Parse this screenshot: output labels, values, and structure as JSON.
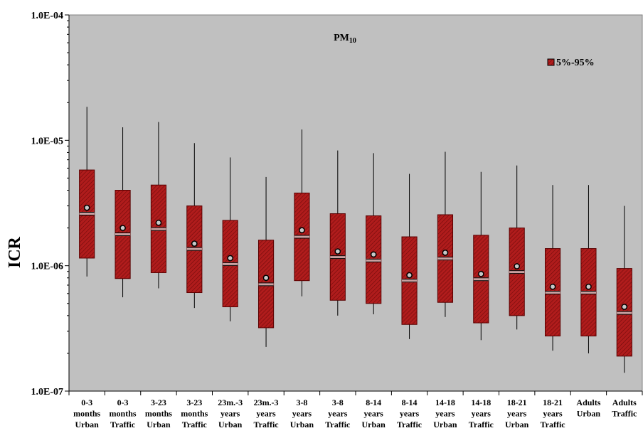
{
  "chart_data": {
    "type": "box",
    "title_main": "PM",
    "title_sub": "10",
    "ylabel": "ICR",
    "xlabel": "",
    "yscale": "log",
    "ylim": [
      1e-07,
      0.0001
    ],
    "y_ticks": [
      1e-07,
      1e-06,
      1e-05,
      0.0001
    ],
    "y_tick_labels": [
      "1.0E-07",
      "1.0E-06",
      "1.0E-05",
      "1.0E-04"
    ],
    "grid": false,
    "legend": {
      "label": "5%-95%",
      "position": "top-right"
    },
    "colors": {
      "plot_background": "#c0c0c0",
      "box_fill": "#b01c1c",
      "box_stroke": "#5a0000",
      "mean_marker": "#c8c8c8"
    },
    "categories": [
      [
        "0-3",
        "months",
        "Urban"
      ],
      [
        "0-3",
        "months",
        "Traffic"
      ],
      [
        "3-23",
        "months",
        "Urban"
      ],
      [
        "3-23",
        "months",
        "Traffic"
      ],
      [
        "23m.-3",
        "years",
        "Urban"
      ],
      [
        "23m.-3",
        "years",
        "Traffic"
      ],
      [
        "3-8",
        "years",
        "Urban"
      ],
      [
        "3-8",
        "years",
        "Traffic"
      ],
      [
        "8-14",
        "years",
        "Urban"
      ],
      [
        "8-14",
        "years",
        "Traffic"
      ],
      [
        "14-18",
        "years",
        "Urban"
      ],
      [
        "14-18",
        "years",
        "Traffic"
      ],
      [
        "18-21",
        "years",
        "Urban"
      ],
      [
        "18-21",
        "years",
        "Traffic"
      ],
      [
        "Adults",
        "Urban"
      ],
      [
        "Adults",
        "Traffic"
      ]
    ],
    "series": [
      {
        "name": "5%-95%",
        "boxes": [
          {
            "min": 8.2e-07,
            "q_low": 1.15e-06,
            "median": 2.6e-06,
            "mean": 2.9e-06,
            "q_high": 5.8e-06,
            "max": 1.85e-05
          },
          {
            "min": 5.6e-07,
            "q_low": 7.9e-07,
            "median": 1.78e-06,
            "mean": 2e-06,
            "q_high": 4e-06,
            "max": 1.27e-05
          },
          {
            "min": 6.6e-07,
            "q_low": 8.8e-07,
            "median": 1.96e-06,
            "mean": 2.2e-06,
            "q_high": 4.4e-06,
            "max": 1.4e-05
          },
          {
            "min": 4.6e-07,
            "q_low": 6.1e-07,
            "median": 1.36e-06,
            "mean": 1.5e-06,
            "q_high": 3e-06,
            "max": 9.5e-06
          },
          {
            "min": 3.6e-07,
            "q_low": 4.7e-07,
            "median": 1.03e-06,
            "mean": 1.15e-06,
            "q_high": 2.3e-06,
            "max": 7.3e-06
          },
          {
            "min": 2.25e-07,
            "q_low": 3.2e-07,
            "median": 7.1e-07,
            "mean": 8e-07,
            "q_high": 1.6e-06,
            "max": 5.1e-06
          },
          {
            "min": 5.7e-07,
            "q_low": 7.6e-07,
            "median": 1.7e-06,
            "mean": 1.92e-06,
            "q_high": 3.8e-06,
            "max": 1.22e-05
          },
          {
            "min": 4e-07,
            "q_low": 5.3e-07,
            "median": 1.17e-06,
            "mean": 1.3e-06,
            "q_high": 2.6e-06,
            "max": 8.3e-06
          },
          {
            "min": 4.1e-07,
            "q_low": 5e-07,
            "median": 1.1e-06,
            "mean": 1.23e-06,
            "q_high": 2.5e-06,
            "max": 7.9e-06
          },
          {
            "min": 2.6e-07,
            "q_low": 3.4e-07,
            "median": 7.6e-07,
            "mean": 8.4e-07,
            "q_high": 1.7e-06,
            "max": 5.4e-06
          },
          {
            "min": 3.9e-07,
            "q_low": 5.1e-07,
            "median": 1.14e-06,
            "mean": 1.27e-06,
            "q_high": 2.55e-06,
            "max": 8.1e-06
          },
          {
            "min": 2.55e-07,
            "q_low": 3.5e-07,
            "median": 7.8e-07,
            "mean": 8.6e-07,
            "q_high": 1.75e-06,
            "max": 5.6e-06
          },
          {
            "min": 3.1e-07,
            "q_low": 4e-07,
            "median": 8.9e-07,
            "mean": 9.9e-07,
            "q_high": 2e-06,
            "max": 6.3e-06
          },
          {
            "min": 2.1e-07,
            "q_low": 2.75e-07,
            "median": 6.1e-07,
            "mean": 6.8e-07,
            "q_high": 1.37e-06,
            "max": 4.4e-06
          },
          {
            "min": 2e-07,
            "q_low": 2.75e-07,
            "median": 6.1e-07,
            "mean": 6.8e-07,
            "q_high": 1.37e-06,
            "max": 4.4e-06
          },
          {
            "min": 1.4e-07,
            "q_low": 1.9e-07,
            "median": 4.2e-07,
            "mean": 4.7e-07,
            "q_high": 9.5e-07,
            "max": 3e-06
          }
        ]
      }
    ]
  }
}
